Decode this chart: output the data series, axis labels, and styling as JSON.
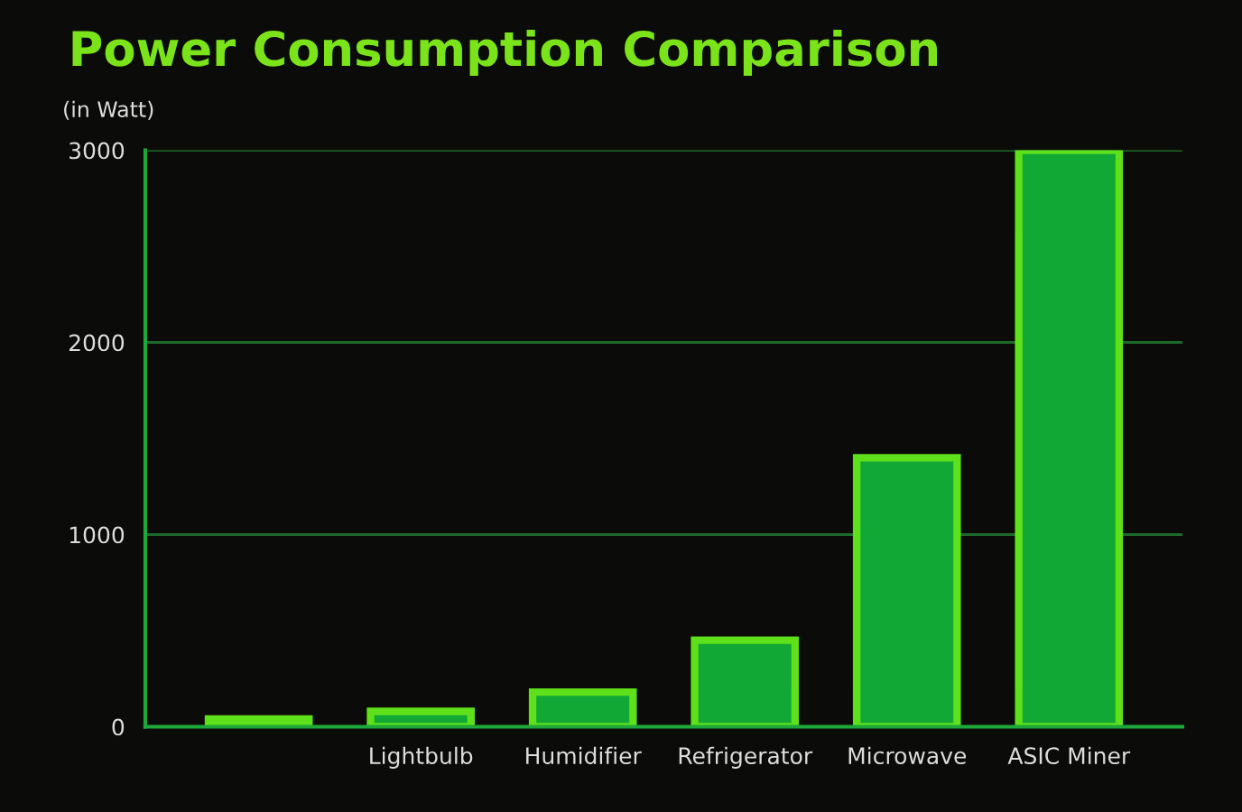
{
  "chart_data": {
    "type": "bar",
    "title": "Power Consumption Comparison",
    "ylabel": "(in Watt)",
    "categories": [
      null,
      "Lightbulb",
      "Humidifier",
      "Refrigerator",
      "Microwave",
      "ASIC Miner"
    ],
    "values": [
      40,
      80,
      180,
      450,
      1400,
      3000
    ],
    "color": "#12a836",
    "ylim": [
      0,
      3000
    ],
    "yticks": [
      0,
      1000,
      2000,
      3000
    ],
    "grid": "y"
  }
}
